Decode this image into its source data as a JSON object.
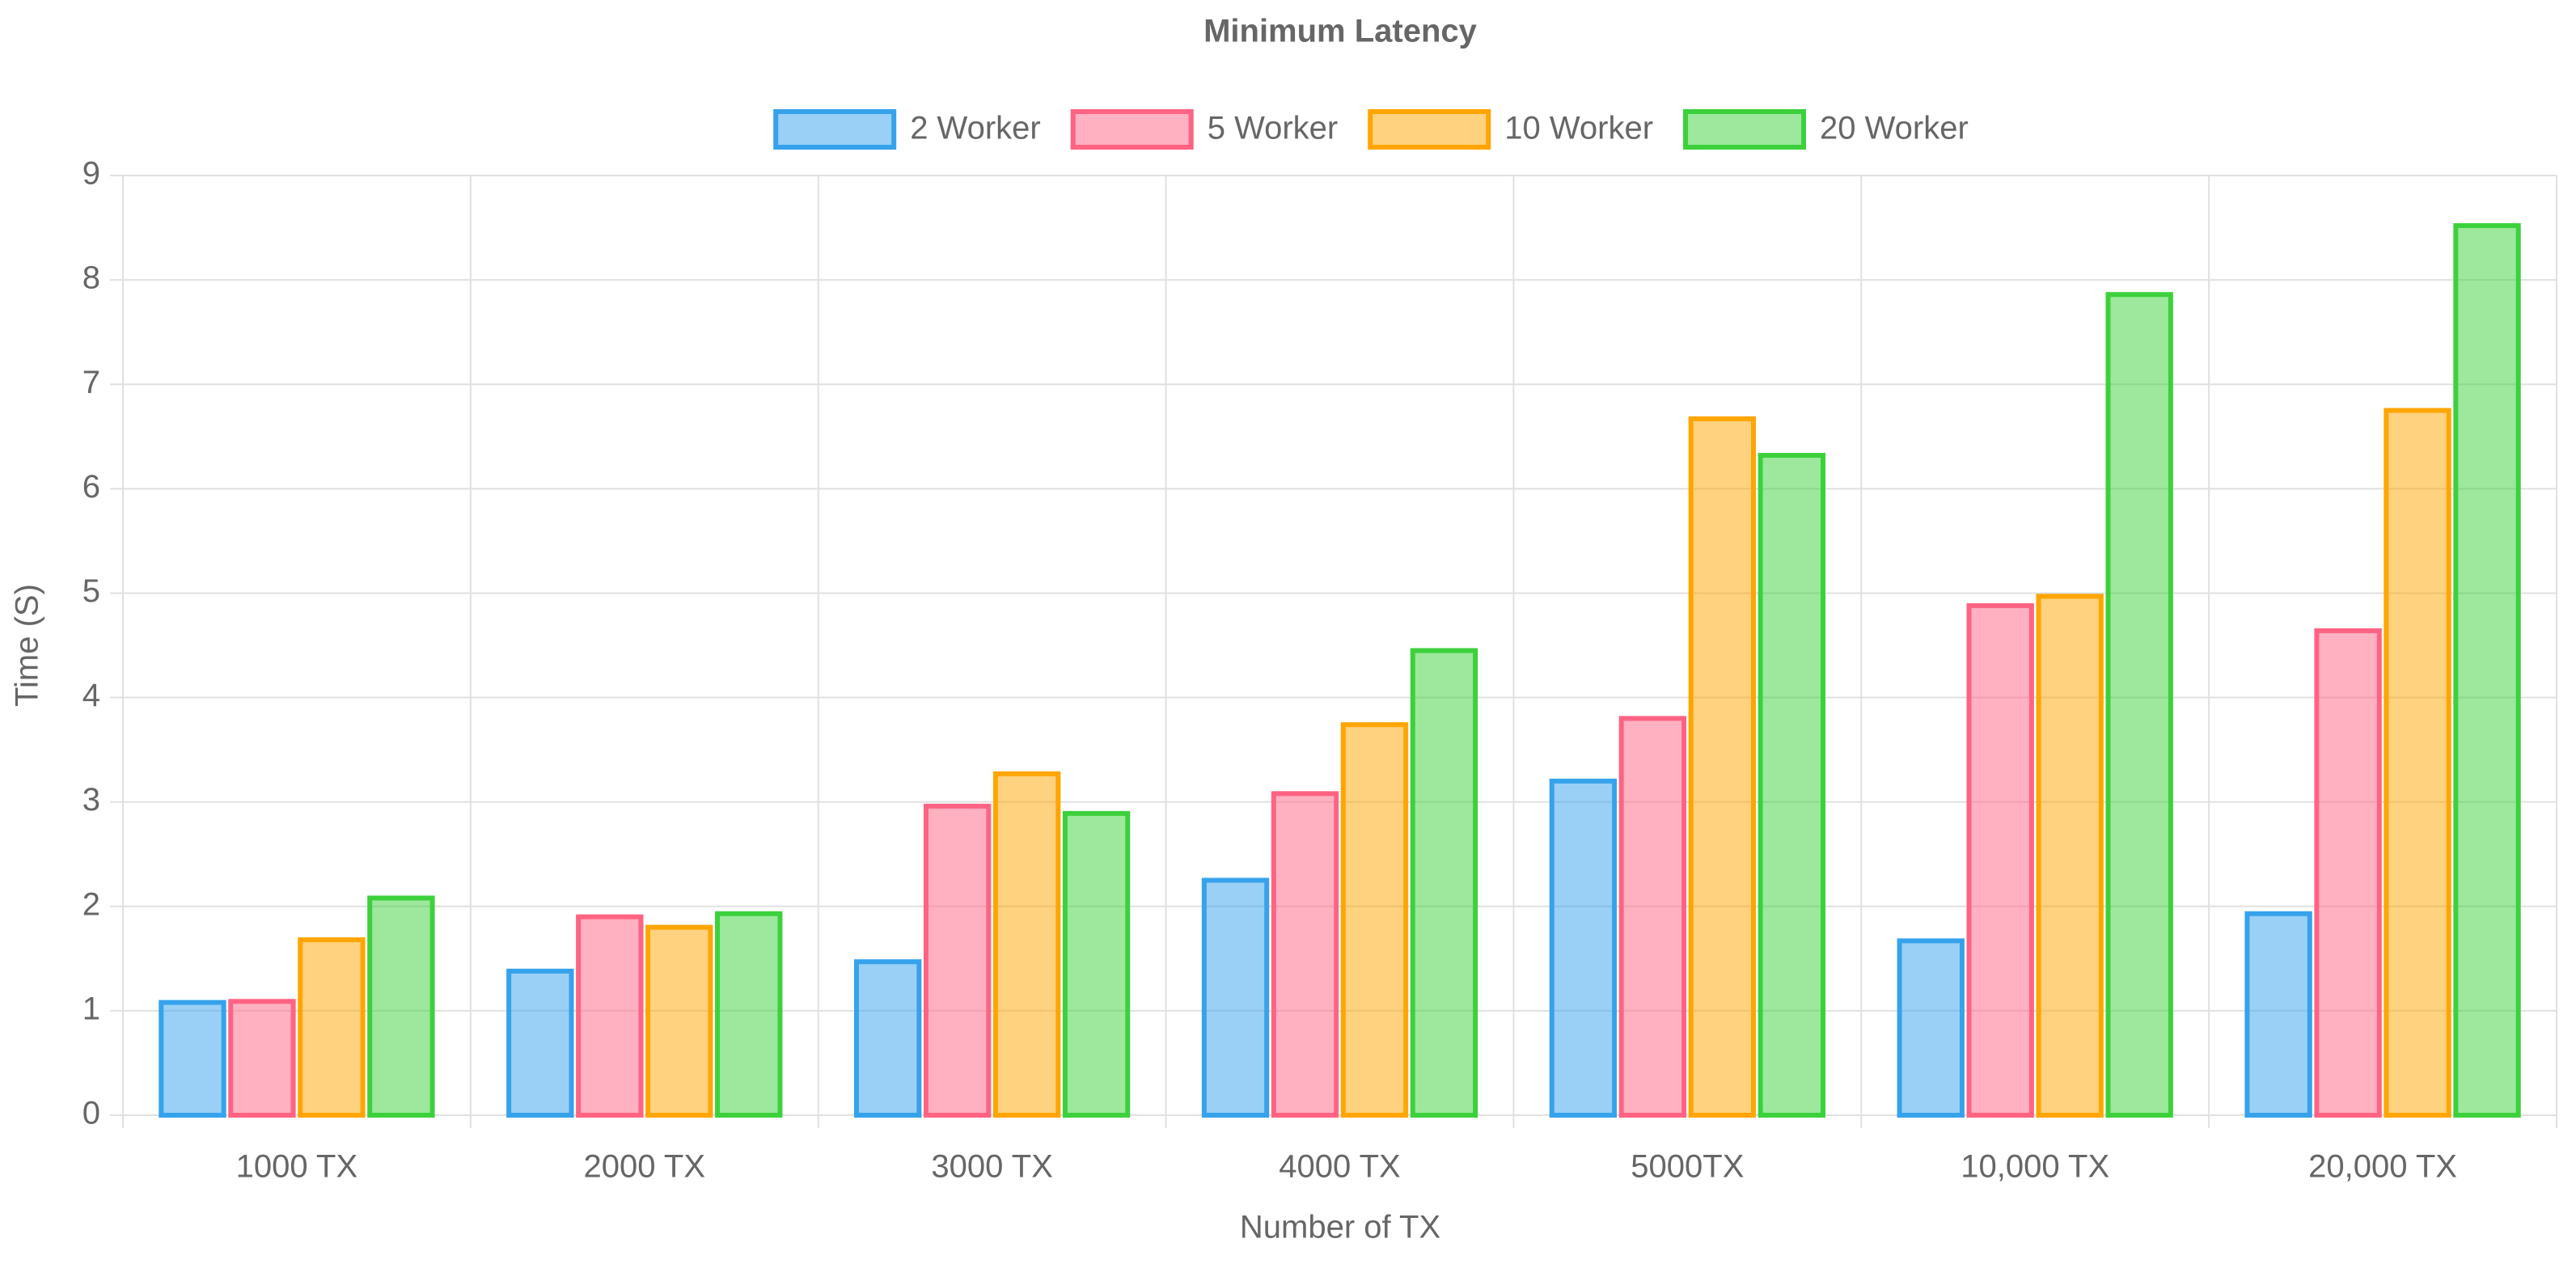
{
  "chart_data": {
    "type": "bar",
    "title": "Minimum Latency",
    "x_label": "Number of TX",
    "y_label": "Time (S)",
    "categories": [
      "1000 TX",
      "2000 TX",
      "3000 TX",
      "4000 TX",
      "5000TX",
      "10,000 TX",
      "20,000 TX"
    ],
    "series": [
      {
        "name": "2 Worker",
        "color": "#36a2eb",
        "values": [
          1.08,
          1.38,
          1.47,
          2.25,
          3.2,
          1.67,
          1.93
        ]
      },
      {
        "name": "5 Worker",
        "color": "#ff6384",
        "values": [
          1.09,
          1.9,
          2.96,
          3.08,
          3.8,
          4.88,
          4.64
        ]
      },
      {
        "name": "10 Worker",
        "color": "#ffa500",
        "values": [
          1.68,
          1.8,
          3.27,
          3.74,
          6.67,
          4.97,
          6.75
        ]
      },
      {
        "name": "20 Worker",
        "color": "#3cd13c",
        "values": [
          2.08,
          1.93,
          2.89,
          4.45,
          6.32,
          7.86,
          8.52
        ]
      }
    ],
    "ylim": [
      0,
      9
    ],
    "yticks": [
      0,
      1,
      2,
      3,
      4,
      5,
      6,
      7,
      8,
      9
    ],
    "grid": true,
    "legend": "top"
  }
}
